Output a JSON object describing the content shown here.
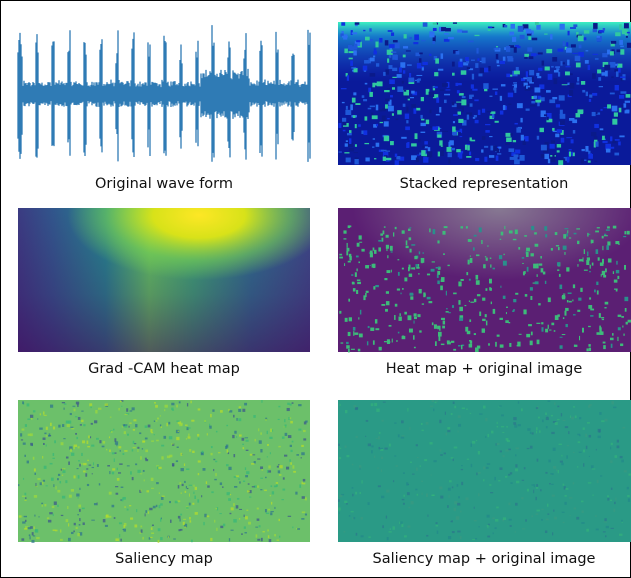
{
  "panels": [
    {
      "caption": "Original wave form"
    },
    {
      "caption": "Stacked representation"
    },
    {
      "caption": "Grad -CAM heat map"
    },
    {
      "caption": "Heat map + original image"
    },
    {
      "caption": "Saliency map"
    },
    {
      "caption": "Saliency map + original image"
    }
  ]
}
